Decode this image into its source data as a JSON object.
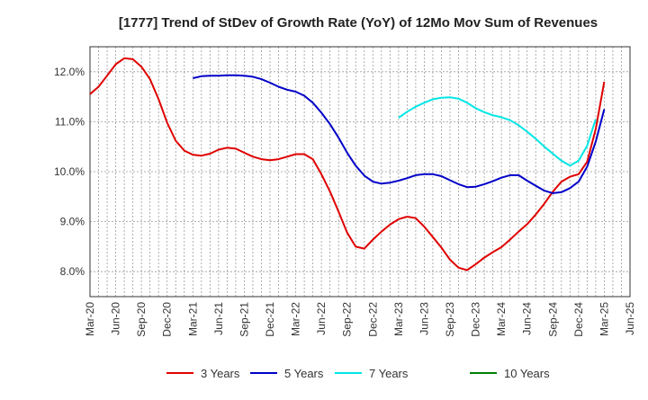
{
  "chart_data": {
    "type": "line",
    "title": "[1777]  Trend of StDev of Growth Rate (YoY) of 12Mo Mov Sum of Revenues",
    "xlabel": "",
    "ylabel": "",
    "ylim": [
      7.5,
      12.5
    ],
    "y_ticks": [
      8.0,
      9.0,
      10.0,
      11.0,
      12.0
    ],
    "y_tick_labels": [
      "8.0%",
      "9.0%",
      "10.0%",
      "11.0%",
      "12.0%"
    ],
    "x_tick_labels": [
      "Mar-20",
      "Jun-20",
      "Sep-20",
      "Dec-20",
      "Mar-21",
      "Jun-21",
      "Sep-21",
      "Dec-21",
      "Mar-22",
      "Jun-22",
      "Sep-22",
      "Dec-22",
      "Mar-23",
      "Jun-23",
      "Sep-23",
      "Dec-23",
      "Mar-24",
      "Jun-24",
      "Sep-24",
      "Dec-24",
      "Mar-25",
      "Jun-25"
    ],
    "x_start": "Mar-20",
    "months_total": 63,
    "grid": true,
    "legend_position": "bottom",
    "series": [
      {
        "name": "3 Years",
        "color": "#e00000",
        "start_index": 0,
        "values": [
          11.55,
          11.7,
          11.92,
          12.15,
          12.27,
          12.25,
          12.1,
          11.85,
          11.45,
          10.98,
          10.62,
          10.42,
          10.34,
          10.32,
          10.36,
          10.44,
          10.48,
          10.46,
          10.38,
          10.3,
          10.25,
          10.23,
          10.25,
          10.3,
          10.35,
          10.35,
          10.25,
          9.95,
          9.6,
          9.2,
          8.78,
          8.5,
          8.46,
          8.64,
          8.8,
          8.94,
          9.05,
          9.1,
          9.07,
          8.9,
          8.69,
          8.48,
          8.24,
          8.08,
          8.03,
          8.15,
          8.28,
          8.39,
          8.49,
          8.64,
          8.8,
          8.95,
          9.14,
          9.36,
          9.6,
          9.8,
          9.9,
          9.95,
          10.2,
          10.85,
          11.8
        ]
      },
      {
        "name": "5 Years",
        "color": "#0000c8",
        "start_index": 12,
        "values": [
          11.87,
          11.91,
          11.92,
          11.92,
          11.93,
          11.93,
          11.92,
          11.9,
          11.85,
          11.78,
          11.7,
          11.64,
          11.6,
          11.52,
          11.38,
          11.18,
          10.95,
          10.68,
          10.38,
          10.12,
          9.92,
          9.8,
          9.76,
          9.78,
          9.82,
          9.87,
          9.93,
          9.95,
          9.95,
          9.91,
          9.83,
          9.75,
          9.69,
          9.7,
          9.75,
          9.81,
          9.88,
          9.93,
          9.93,
          9.82,
          9.72,
          9.62,
          9.57,
          9.59,
          9.67,
          9.8,
          10.1,
          10.6,
          11.25
        ]
      },
      {
        "name": "7 Years",
        "color": "#00e6e6",
        "start_index": 36,
        "values": [
          11.08,
          11.2,
          11.3,
          11.38,
          11.45,
          11.48,
          11.49,
          11.46,
          11.38,
          11.27,
          11.19,
          11.13,
          11.09,
          11.03,
          10.93,
          10.8,
          10.66,
          10.5,
          10.36,
          10.22,
          10.12,
          10.22,
          10.52,
          11.05
        ]
      },
      {
        "name": "10 Years",
        "color": "#008000",
        "start_index": 0,
        "values": []
      }
    ]
  }
}
